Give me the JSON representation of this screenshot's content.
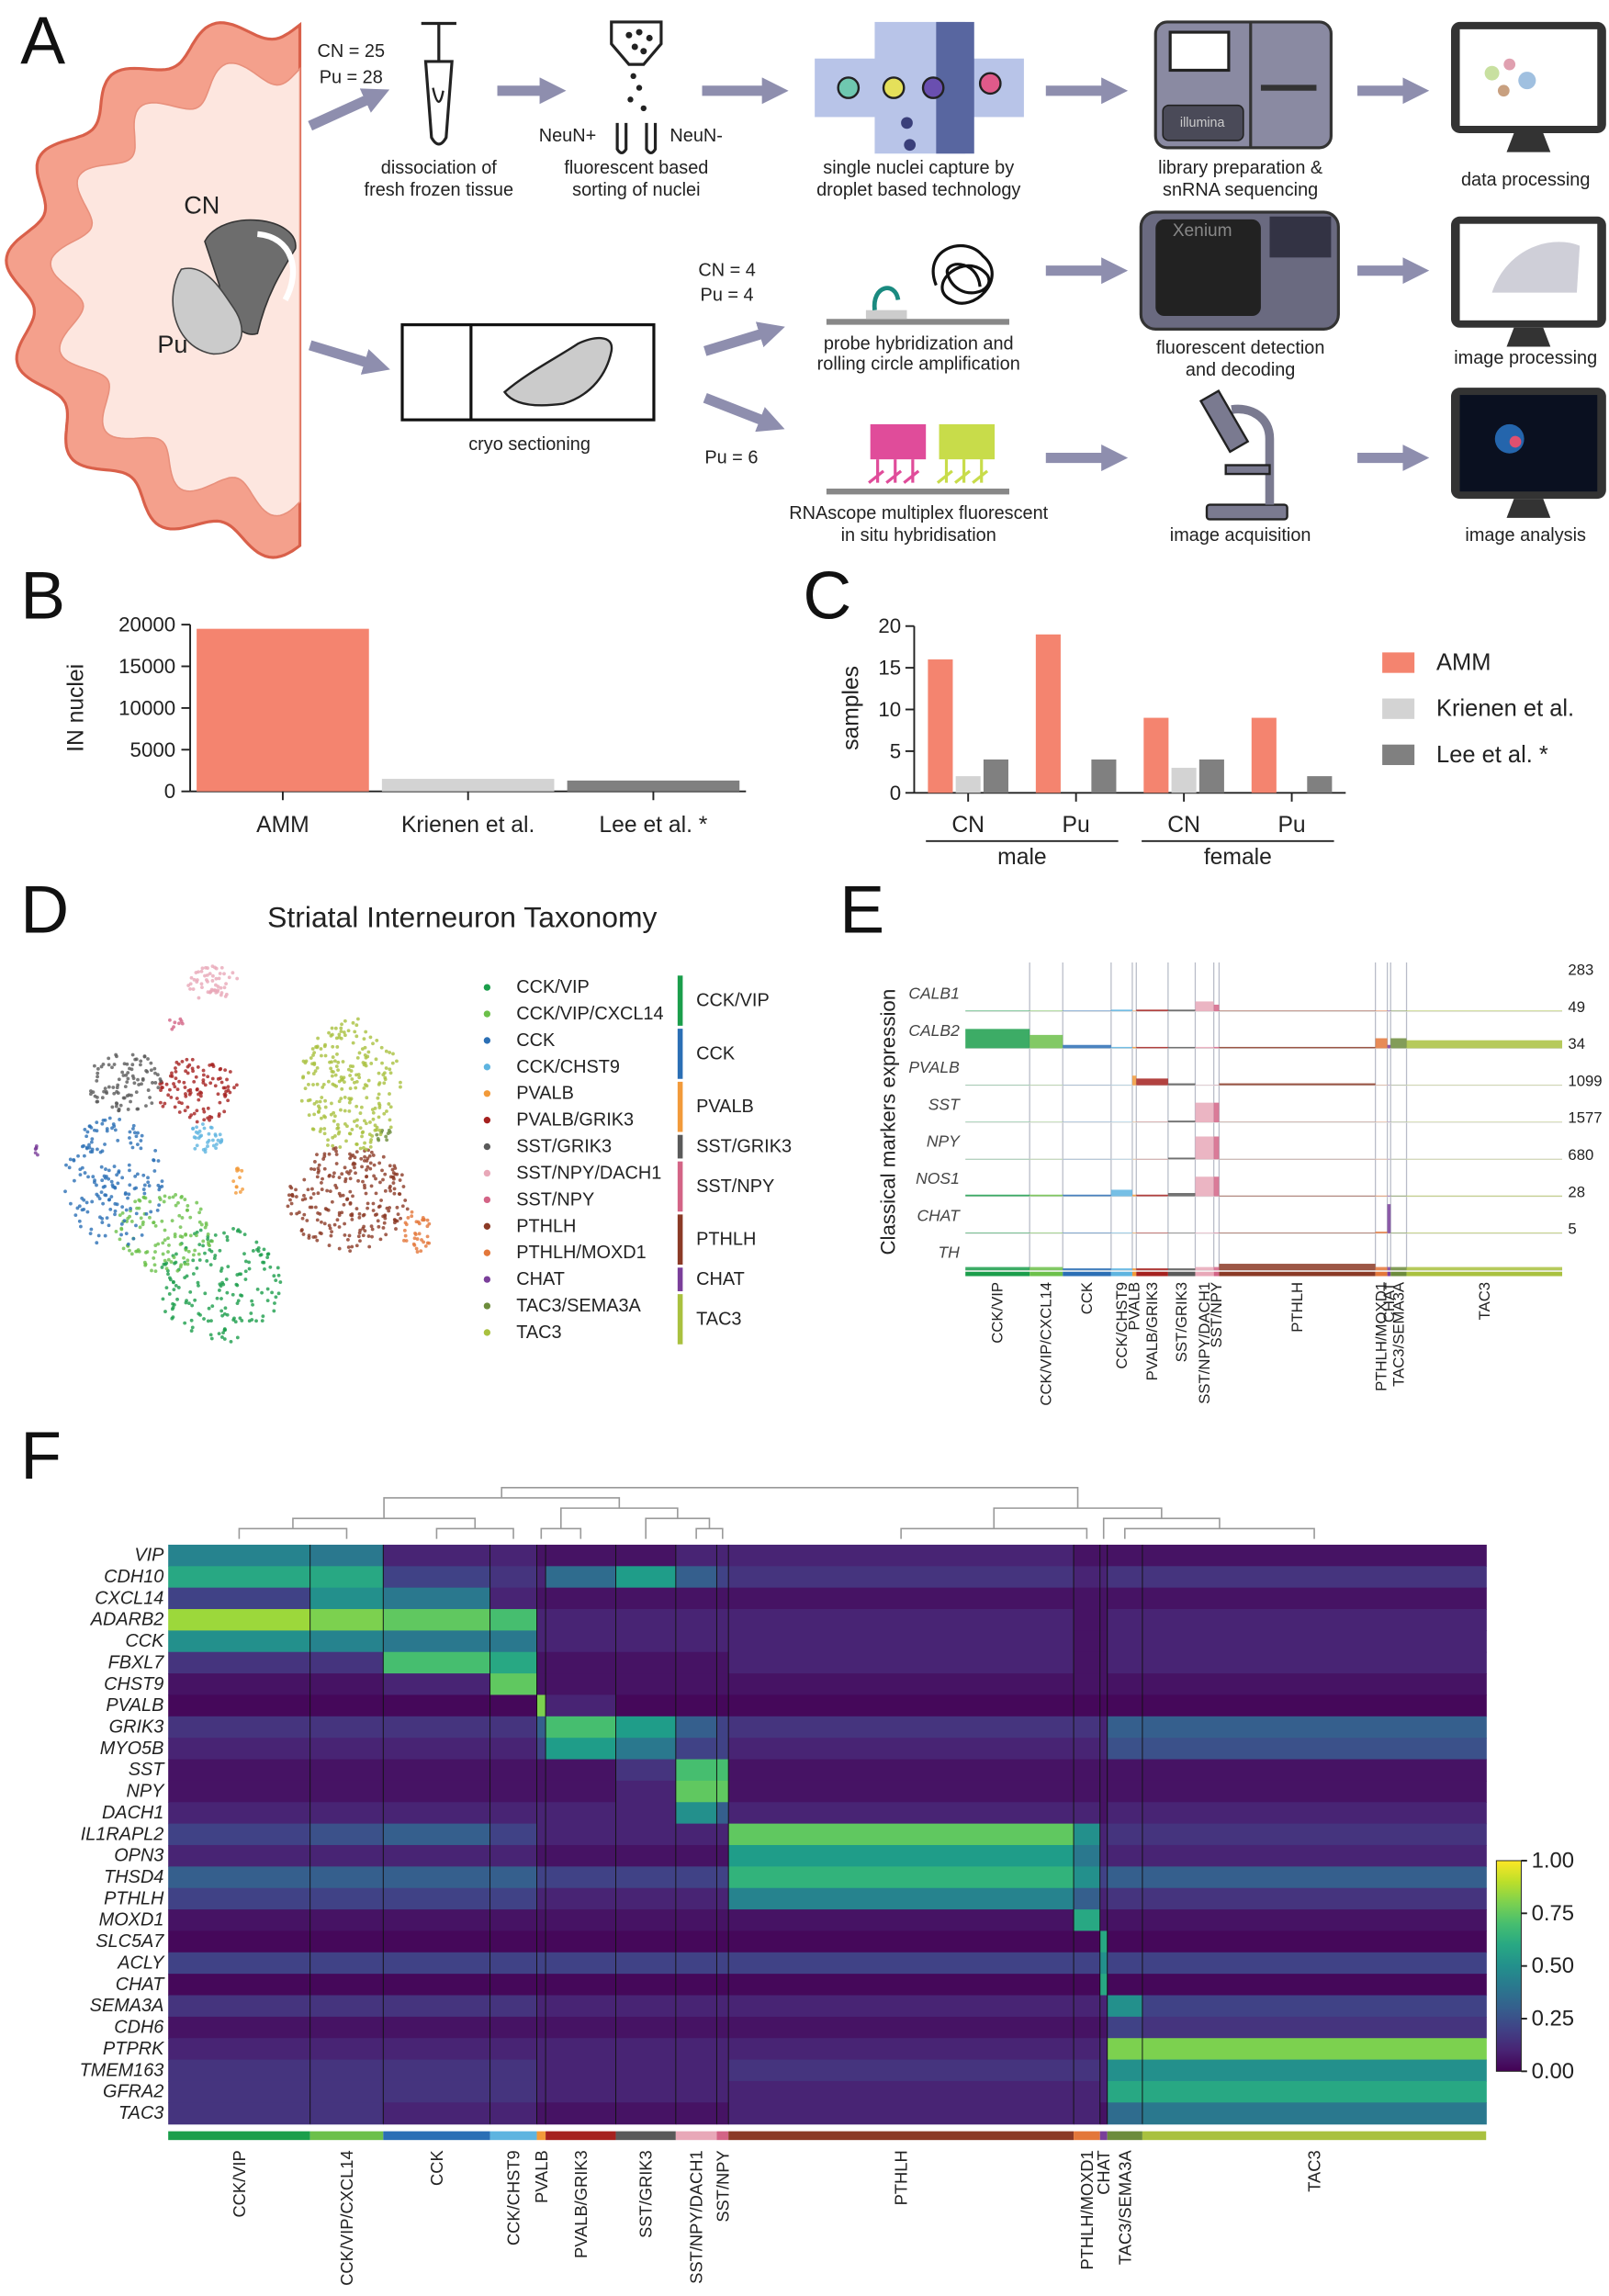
{
  "workflow": {
    "panel": "A",
    "brain": {
      "cn": "CN",
      "pu": "Pu"
    },
    "sn_counts": [
      "CN = 25",
      "Pu = 28"
    ],
    "xenium_counts": [
      "CN = 4",
      "Pu = 4"
    ],
    "rnascope_counts": [
      "Pu = 6"
    ],
    "sort_labels": [
      "NeuN+",
      "NeuN-"
    ],
    "icon_texts": {
      "sequencer": "illumina",
      "xenium": "Xenium"
    },
    "steps": {
      "dissociation": [
        "dissociation of",
        "fresh frozen tissue"
      ],
      "sorting": [
        "fluorescent based",
        "sorting of nuclei"
      ],
      "capture": [
        "single nuclei capture by",
        "droplet based technology"
      ],
      "sequencing": [
        "library preparation &",
        "snRNA sequencing"
      ],
      "data_processing": [
        "data processing"
      ],
      "cryo": [
        "cryo sectioning"
      ],
      "probe": [
        "probe hybridization and",
        "rolling circle amplification"
      ],
      "detection": [
        "fluorescent detection",
        "and decoding"
      ],
      "image_processing": [
        "image processing"
      ],
      "rnascope": [
        "RNAscope multiplex fluorescent",
        "in situ hybridisation"
      ],
      "acquisition": [
        "image acquisition"
      ],
      "analysis": [
        "image analysis"
      ]
    }
  },
  "clusters": [
    {
      "name": "CCK/VIP",
      "color": "#1b9e4b"
    },
    {
      "name": "CCK/VIP/CXCL14",
      "color": "#6cc04a"
    },
    {
      "name": "CCK",
      "color": "#2b6fb5"
    },
    {
      "name": "CCK/CHST9",
      "color": "#5eb4e0"
    },
    {
      "name": "PVALB",
      "color": "#f29a3a"
    },
    {
      "name": "PVALB/GRIK3",
      "color": "#a5211f"
    },
    {
      "name": "SST/GRIK3",
      "color": "#5a5a5a"
    },
    {
      "name": "SST/NPY/DACH1",
      "color": "#e8a8b8"
    },
    {
      "name": "SST/NPY",
      "color": "#d36486"
    },
    {
      "name": "PTHLH",
      "color": "#8b3a26"
    },
    {
      "name": "PTHLH/MOXD1",
      "color": "#e3773a"
    },
    {
      "name": "CHAT",
      "color": "#7a3f9a"
    },
    {
      "name": "TAC3/SEMA3A",
      "color": "#6d8c3c"
    },
    {
      "name": "TAC3",
      "color": "#a9c13f"
    }
  ],
  "chart_data": [
    {
      "type": "bar",
      "panel": "B",
      "y_label": "IN nuclei",
      "categories": [
        "AMM",
        "Krienen et al.",
        "Lee et al. *"
      ],
      "values": [
        19500,
        1500,
        1300
      ],
      "colors": [
        "#f4846f",
        "#d3d3d3",
        "#808080"
      ],
      "ylim": [
        0,
        20000
      ],
      "yticks": [
        0,
        5000,
        10000,
        15000,
        20000
      ]
    },
    {
      "type": "grouped-bar",
      "panel": "C",
      "y_label": "samples",
      "categories": [
        "CN",
        "Pu",
        "CN",
        "Pu"
      ],
      "groups": [
        "male",
        "female"
      ],
      "series": [
        {
          "name": "AMM",
          "color": "#f4846f",
          "values": [
            16,
            19,
            9,
            9
          ]
        },
        {
          "name": "Krienen et al.",
          "color": "#d3d3d3",
          "values": [
            2,
            null,
            3,
            null
          ]
        },
        {
          "name": "Lee et al. *",
          "color": "#808080",
          "values": [
            4,
            4,
            4,
            2
          ]
        }
      ],
      "ylim": [
        0,
        20
      ],
      "yticks": [
        0,
        5,
        10,
        15,
        20
      ]
    },
    {
      "type": "umap",
      "panel": "D",
      "title": "Striatal Interneuron Taxonomy",
      "groups": [
        {
          "name": "CCK/VIP",
          "color": "#1b9e4b"
        },
        {
          "name": "CCK",
          "color": "#2b6fb5"
        },
        {
          "name": "PVALB",
          "color": "#f29a3a"
        },
        {
          "name": "SST/GRIK3",
          "color": "#5a5a5a"
        },
        {
          "name": "SST/NPY",
          "color": "#d36486"
        },
        {
          "name": "PTHLH",
          "color": "#8b3a26"
        },
        {
          "name": "CHAT",
          "color": "#7a3f9a"
        },
        {
          "name": "TAC3",
          "color": "#a9c13f"
        }
      ]
    },
    {
      "type": "tracks",
      "panel": "E",
      "y_label": "Classical markers expression",
      "genes": [
        "CALB1",
        "CALB2",
        "PVALB",
        "SST",
        "NPY",
        "NOS1",
        "CHAT",
        "TH"
      ],
      "max_values": [
        283,
        49,
        34,
        1099,
        1577,
        680,
        28,
        5
      ],
      "values": [
        [
          5,
          5,
          5,
          14,
          5,
          14,
          14,
          85,
          57,
          5,
          5,
          5,
          5,
          5
        ],
        [
          29,
          20,
          5,
          2,
          2,
          2,
          2,
          2,
          2,
          2,
          15,
          5,
          15,
          12
        ],
        [
          0.3,
          0.3,
          0.3,
          0.3,
          10,
          7,
          2,
          0.3,
          0.3,
          2,
          0.3,
          0.3,
          0.3,
          0.3
        ],
        [
          10,
          10,
          10,
          10,
          10,
          10,
          55,
          660,
          660,
          10,
          10,
          10,
          10,
          10
        ],
        [
          15,
          15,
          15,
          15,
          15,
          15,
          80,
          1100,
          1100,
          15,
          15,
          15,
          15,
          15
        ],
        [
          34,
          34,
          34,
          136,
          34,
          34,
          68,
          408,
          408,
          14,
          14,
          14,
          14,
          14
        ],
        [
          0.5,
          0.5,
          0.5,
          0.5,
          0.5,
          0.5,
          0.5,
          0.5,
          0.5,
          0.5,
          1.4,
          25,
          0.5,
          0.5
        ],
        [
          0.5,
          0.5,
          0.3,
          0.3,
          0.3,
          0.3,
          0.3,
          0.5,
          0.5,
          1,
          0.5,
          0.5,
          0.5,
          0.5
        ]
      ]
    },
    {
      "type": "heatmap",
      "panel": "F",
      "colormap": "viridis",
      "genes": [
        "VIP",
        "CDH10",
        "CXCL14",
        "ADARB2",
        "CCK",
        "FBXL7",
        "CHST9",
        "PVALB",
        "GRIK3",
        "MYO5B",
        "SST",
        "NPY",
        "DACH1",
        "IL1RAPL2",
        "OPN3",
        "THSD4",
        "PTHLH",
        "MOXD1",
        "SLC5A7",
        "ACLY",
        "CHAT",
        "SEMA3A",
        "CDH6",
        "PTPRK",
        "TMEM163",
        "GFRA2",
        "TAC3"
      ],
      "values": [
        [
          0.45,
          0.4,
          0.1,
          0.1,
          0.05,
          0.05,
          0.05,
          0.1,
          0.1,
          0.1,
          0.05,
          0.05,
          0.05,
          0.05
        ],
        [
          0.6,
          0.6,
          0.2,
          0.15,
          0.1,
          0.35,
          0.55,
          0.3,
          0.2,
          0.15,
          0.1,
          0.1,
          0.15,
          0.15
        ],
        [
          0.2,
          0.5,
          0.4,
          0.1,
          0.05,
          0.05,
          0.05,
          0.05,
          0.05,
          0.05,
          0.05,
          0.05,
          0.05,
          0.05
        ],
        [
          0.85,
          0.8,
          0.75,
          0.7,
          0.1,
          0.1,
          0.1,
          0.1,
          0.1,
          0.1,
          0.05,
          0.05,
          0.1,
          0.1
        ],
        [
          0.5,
          0.45,
          0.4,
          0.4,
          0.1,
          0.1,
          0.1,
          0.1,
          0.1,
          0.1,
          0.05,
          0.05,
          0.1,
          0.1
        ],
        [
          0.15,
          0.15,
          0.7,
          0.6,
          0.05,
          0.05,
          0.05,
          0.05,
          0.05,
          0.1,
          0.05,
          0.05,
          0.1,
          0.1
        ],
        [
          0.05,
          0.05,
          0.1,
          0.75,
          0.05,
          0.05,
          0.05,
          0.05,
          0.05,
          0.05,
          0.05,
          0.05,
          0.05,
          0.05
        ],
        [
          0.02,
          0.02,
          0.02,
          0.02,
          0.8,
          0.1,
          0.02,
          0.02,
          0.02,
          0.02,
          0.02,
          0.02,
          0.02,
          0.02
        ],
        [
          0.15,
          0.15,
          0.15,
          0.15,
          0.3,
          0.7,
          0.55,
          0.3,
          0.2,
          0.15,
          0.15,
          0.1,
          0.3,
          0.3
        ],
        [
          0.1,
          0.1,
          0.1,
          0.1,
          0.2,
          0.55,
          0.4,
          0.2,
          0.2,
          0.1,
          0.1,
          0.1,
          0.25,
          0.25
        ],
        [
          0.05,
          0.05,
          0.05,
          0.05,
          0.05,
          0.05,
          0.15,
          0.7,
          0.7,
          0.05,
          0.05,
          0.05,
          0.05,
          0.05
        ],
        [
          0.05,
          0.05,
          0.05,
          0.05,
          0.05,
          0.05,
          0.1,
          0.75,
          0.75,
          0.05,
          0.05,
          0.05,
          0.05,
          0.05
        ],
        [
          0.1,
          0.1,
          0.1,
          0.1,
          0.1,
          0.1,
          0.1,
          0.5,
          0.3,
          0.1,
          0.1,
          0.05,
          0.1,
          0.1
        ],
        [
          0.2,
          0.25,
          0.3,
          0.2,
          0.1,
          0.1,
          0.1,
          0.1,
          0.1,
          0.75,
          0.5,
          0.1,
          0.15,
          0.15
        ],
        [
          0.1,
          0.1,
          0.1,
          0.1,
          0.05,
          0.05,
          0.05,
          0.05,
          0.05,
          0.55,
          0.4,
          0.1,
          0.1,
          0.1
        ],
        [
          0.3,
          0.3,
          0.3,
          0.3,
          0.2,
          0.2,
          0.2,
          0.2,
          0.2,
          0.65,
          0.5,
          0.2,
          0.3,
          0.3
        ],
        [
          0.2,
          0.2,
          0.2,
          0.2,
          0.1,
          0.1,
          0.1,
          0.1,
          0.1,
          0.45,
          0.3,
          0.1,
          0.15,
          0.15
        ],
        [
          0.05,
          0.05,
          0.05,
          0.05,
          0.05,
          0.05,
          0.05,
          0.05,
          0.05,
          0.05,
          0.6,
          0.05,
          0.05,
          0.05
        ],
        [
          0.02,
          0.02,
          0.02,
          0.02,
          0.02,
          0.02,
          0.02,
          0.02,
          0.02,
          0.02,
          0.02,
          0.6,
          0.02,
          0.02
        ],
        [
          0.2,
          0.2,
          0.2,
          0.2,
          0.2,
          0.2,
          0.2,
          0.2,
          0.2,
          0.2,
          0.2,
          0.5,
          0.2,
          0.2
        ],
        [
          0.02,
          0.02,
          0.02,
          0.02,
          0.02,
          0.02,
          0.02,
          0.02,
          0.02,
          0.02,
          0.02,
          0.6,
          0.02,
          0.02
        ],
        [
          0.15,
          0.15,
          0.15,
          0.15,
          0.1,
          0.1,
          0.1,
          0.1,
          0.1,
          0.1,
          0.1,
          0.1,
          0.5,
          0.2
        ],
        [
          0.05,
          0.05,
          0.05,
          0.05,
          0.05,
          0.05,
          0.05,
          0.05,
          0.05,
          0.05,
          0.05,
          0.05,
          0.2,
          0.15
        ],
        [
          0.1,
          0.1,
          0.1,
          0.1,
          0.1,
          0.1,
          0.1,
          0.1,
          0.1,
          0.1,
          0.1,
          0.1,
          0.8,
          0.8
        ],
        [
          0.15,
          0.15,
          0.15,
          0.15,
          0.1,
          0.1,
          0.1,
          0.1,
          0.1,
          0.15,
          0.15,
          0.1,
          0.5,
          0.5
        ],
        [
          0.15,
          0.15,
          0.15,
          0.15,
          0.1,
          0.1,
          0.1,
          0.1,
          0.1,
          0.1,
          0.1,
          0.1,
          0.6,
          0.6
        ],
        [
          0.15,
          0.15,
          0.1,
          0.1,
          0.05,
          0.05,
          0.05,
          0.05,
          0.05,
          0.1,
          0.1,
          0.05,
          0.35,
          0.4
        ]
      ],
      "zlim": [
        0,
        1
      ],
      "zticks": [
        {
          "value": 0,
          "label": "0.00"
        },
        {
          "value": 0.25,
          "label": "0.25"
        },
        {
          "value": 0.5,
          "label": "0.50"
        },
        {
          "value": 0.75,
          "label": "0.75"
        },
        {
          "value": 1,
          "label": "1.00"
        }
      ]
    }
  ]
}
